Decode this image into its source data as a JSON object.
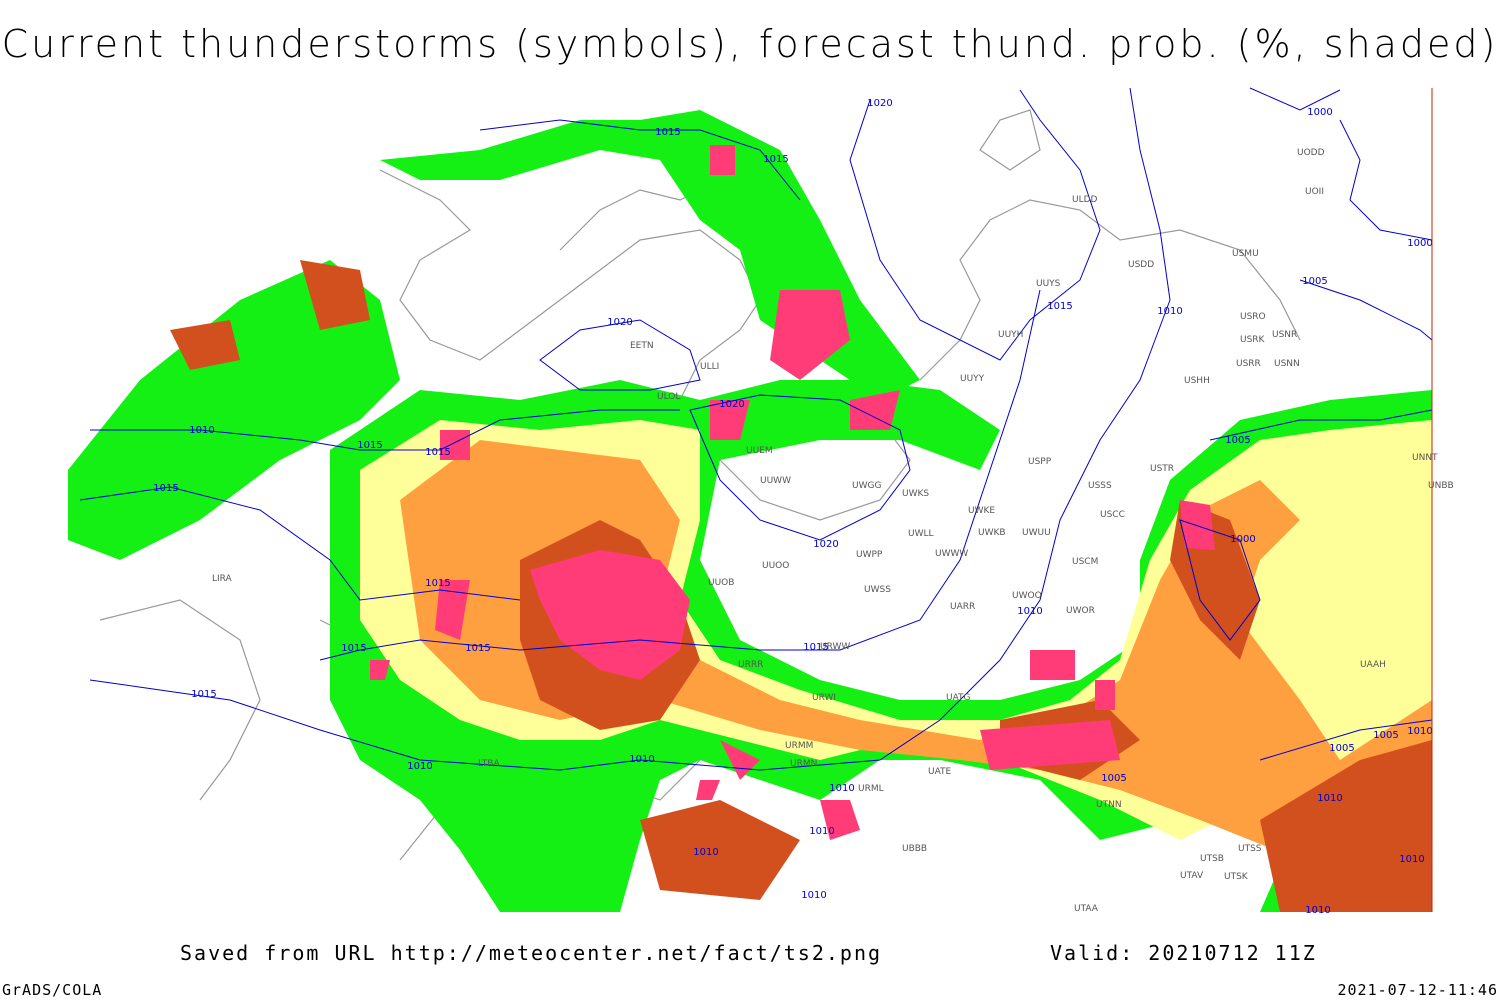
{
  "header": {
    "title": "Current thunderstorms (symbols), forecast thund. prob. (%, shaded)"
  },
  "map": {
    "isobar_labels": [
      "1015",
      "1020",
      "1015",
      "1000",
      "1000",
      "1005",
      "1010",
      "1015",
      "1020",
      "1020",
      "1010",
      "1015",
      "1015",
      "1015",
      "1005",
      "1000",
      "1020",
      "1015",
      "1010",
      "1015",
      "1015",
      "1015",
      "1015",
      "1010",
      "1010",
      "1005",
      "1005",
      "1005",
      "1010",
      "1010",
      "1010",
      "1010",
      "1010",
      "1010",
      "1010",
      "1010"
    ],
    "stations": [
      "ULDD",
      "UOII",
      "UODD",
      "USMU",
      "USDD",
      "UUYS",
      "UUYH",
      "UUYY",
      "USRO",
      "USNR",
      "USRK",
      "USRR",
      "USNN",
      "USHH",
      "ULLI",
      "EETN",
      "ULOL",
      "UUEM",
      "UUWW",
      "UWGG",
      "UWKS",
      "UWKE",
      "UWLL",
      "UWKB",
      "UWUU",
      "UWPP",
      "UWWW",
      "USPP",
      "USSS",
      "USCC",
      "USTR",
      "USCM",
      "UUOO",
      "UUOB",
      "UWSS",
      "UARR",
      "UWOR",
      "UWOO",
      "URWW",
      "URRR",
      "URWI",
      "UATG",
      "UATE",
      "URMM",
      "URMN",
      "URML",
      "UBBB",
      "UTSS",
      "UTSB",
      "UTAV",
      "UTSK",
      "UTAA",
      "UTNN",
      "UAAH",
      "UNNT",
      "UNBB",
      "LIRA",
      "LTBA"
    ]
  },
  "footer": {
    "saved_from": "Saved from URL http://meteocenter.net/fact/ts2.png",
    "valid": "Valid: 20210712 11Z",
    "software": "GrADS/COLA",
    "timestamp": "2021-07-12-11:46"
  }
}
